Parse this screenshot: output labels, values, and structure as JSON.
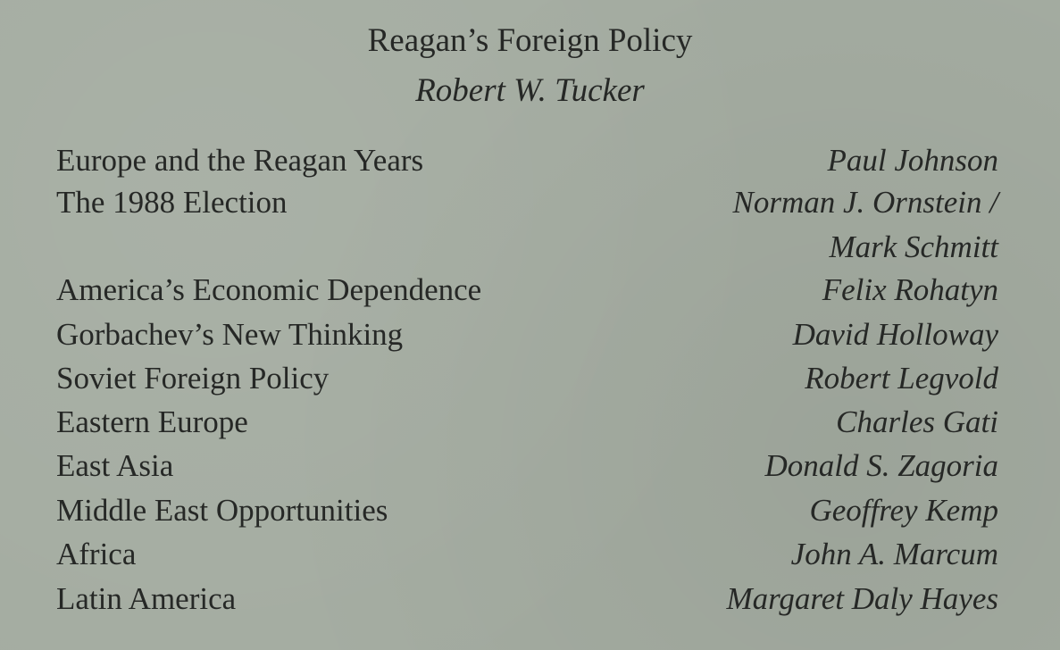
{
  "header": {
    "title": "Reagan’s Foreign Policy",
    "author": "Robert W. Tucker"
  },
  "contents": [
    {
      "title": "Europe and the Reagan Years",
      "author": "Paul Johnson"
    },
    {
      "title": "The 1988 Election",
      "author": "Norman J. Ornstein /"
    },
    {
      "title": "",
      "author": "Mark Schmitt"
    },
    {
      "title": "America’s Economic Dependence",
      "author": "Felix Rohatyn"
    },
    {
      "title": "Gorbachev’s New Thinking",
      "author": "David Holloway"
    },
    {
      "title": "Soviet Foreign Policy",
      "author": "Robert Legvold"
    },
    {
      "title": "Eastern Europe",
      "author": "Charles Gati"
    },
    {
      "title": "East Asia",
      "author": "Donald S. Zagoria"
    },
    {
      "title": "Middle East Opportunities",
      "author": "Geoffrey Kemp"
    },
    {
      "title": "Africa",
      "author": "John A. Marcum"
    },
    {
      "title": "Latin America",
      "author": "Margaret Daly Hayes"
    }
  ]
}
